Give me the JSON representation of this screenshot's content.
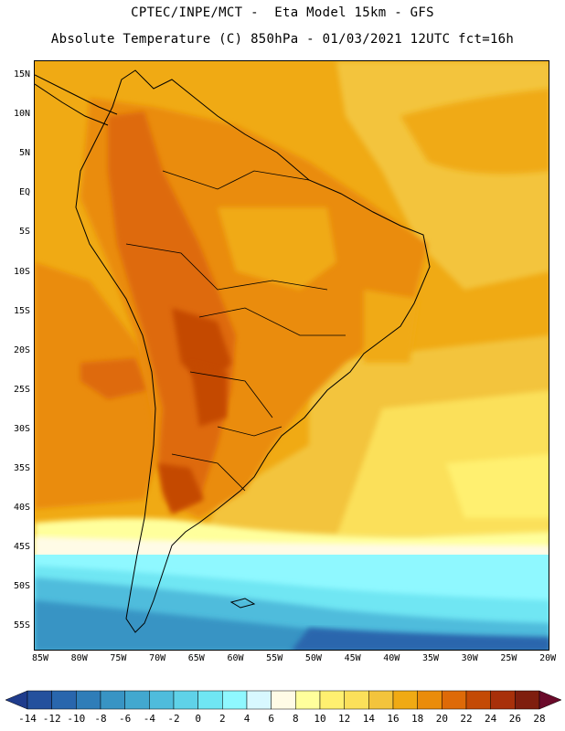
{
  "title_line1": "CPTEC/INPE/MCT -  Eta Model 15km - GFS",
  "title_line2": "Absolute Temperature (C) 850hPa - 01/03/2021 12UTC fct=16h",
  "lat_labels": [
    "15N",
    "10N",
    "5N",
    "EQ",
    "5S",
    "10S",
    "15S",
    "20S",
    "25S",
    "30S",
    "35S",
    "40S",
    "45S",
    "50S",
    "55S"
  ],
  "lon_labels": [
    "85W",
    "80W",
    "75W",
    "70W",
    "65W",
    "60W",
    "55W",
    "50W",
    "45W",
    "40W",
    "35W",
    "30W",
    "25W",
    "20W"
  ],
  "colorbar": {
    "labels": [
      "-14",
      "-12",
      "-10",
      "-8",
      "-6",
      "-4",
      "-2",
      "0",
      "2",
      "4",
      "6",
      "8",
      "10",
      "12",
      "14",
      "16",
      "18",
      "20",
      "22",
      "24",
      "26",
      "28"
    ],
    "colors": [
      "#1f3c8c",
      "#24509d",
      "#2966ad",
      "#2f7db8",
      "#3894c4",
      "#42a8cf",
      "#4fbcdc",
      "#5fd2e8",
      "#6fe6f3",
      "#8ff8ff",
      "#d8f8ff",
      "#fffbe6",
      "#ffff9c",
      "#fff070",
      "#fbe05a",
      "#f3c43c",
      "#f0aa14",
      "#ea8c0a",
      "#de6a08",
      "#c44a05",
      "#a8300a",
      "#7f1e0e",
      "#6a0a2a"
    ]
  }
}
